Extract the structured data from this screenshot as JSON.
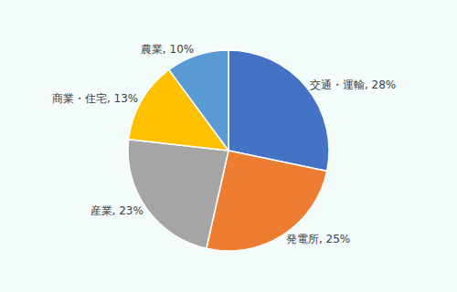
{
  "chart_data": {
    "type": "pie",
    "categories": [
      "交通・運輸",
      "発電所",
      "産業",
      "商業・住宅",
      "農業"
    ],
    "values": [
      28,
      25,
      23,
      13,
      10
    ],
    "value_labels": [
      "交通・運輸, 28%",
      "発電所, 25%",
      "産業, 23%",
      "商業・住宅, 13%",
      "農業, 10%"
    ],
    "colors": [
      "#4472c4",
      "#ed7d31",
      "#a5a5a5",
      "#ffc000",
      "#5b9bd5"
    ],
    "data_labels": true
  }
}
